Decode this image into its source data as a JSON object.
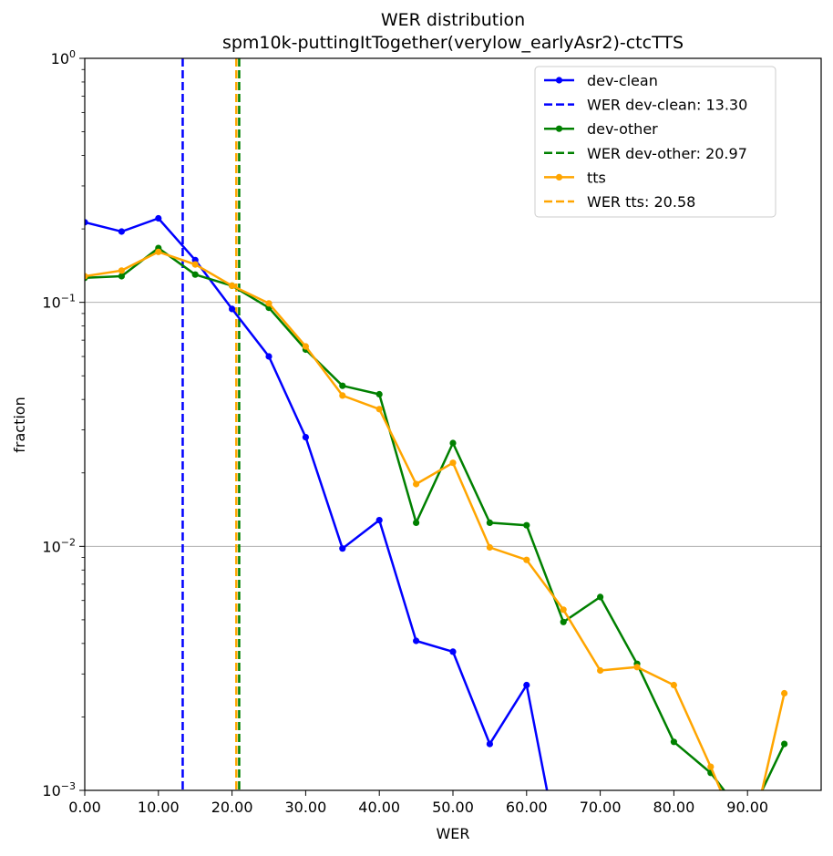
{
  "chart_data": {
    "type": "line",
    "title": "WER distribution",
    "subtitle": "spm10k-puttingItTogether(verylow_earlyAsr2)-ctcTTS",
    "xlabel": "WER",
    "ylabel": "fraction",
    "xlim": [
      0,
      100
    ],
    "ylim": [
      0.001,
      1
    ],
    "yscale": "log",
    "grid": "horizontal major",
    "legend_position": "top-right",
    "x_ticks": [
      0,
      10,
      20,
      30,
      40,
      50,
      60,
      70,
      80,
      90
    ],
    "x_tick_labels": [
      "0.00",
      "10.00",
      "20.00",
      "30.00",
      "40.00",
      "50.00",
      "60.00",
      "70.00",
      "80.00",
      "90.00"
    ],
    "y_ticks": [
      0.001,
      0.01,
      0.1,
      1
    ],
    "y_tick_bases": [
      "10",
      "10",
      "10",
      "10"
    ],
    "y_tick_exponents": [
      "−3",
      "−2",
      "−1",
      "0"
    ],
    "series": [
      {
        "name": "dev-clean",
        "color": "#0000ff",
        "x": [
          0,
          5,
          10,
          15,
          20,
          25,
          30,
          35,
          40,
          45,
          50,
          55,
          60,
          65
        ],
        "y": [
          0.213,
          0.195,
          0.221,
          0.149,
          0.094,
          0.06,
          0.028,
          0.0098,
          0.0128,
          0.0041,
          0.0037,
          0.00155,
          0.0027,
          0.00045
        ]
      },
      {
        "name": "dev-other",
        "color": "#008000",
        "x": [
          0,
          5,
          10,
          15,
          20,
          25,
          30,
          35,
          40,
          45,
          50,
          55,
          60,
          65,
          70,
          75,
          80,
          85,
          90,
          95
        ],
        "y": [
          0.126,
          0.128,
          0.167,
          0.13,
          0.117,
          0.095,
          0.064,
          0.0455,
          0.042,
          0.0125,
          0.0265,
          0.0125,
          0.0122,
          0.0049,
          0.0062,
          0.0033,
          0.00158,
          0.00118,
          0.00075,
          0.00155
        ]
      },
      {
        "name": "tts",
        "color": "#ffa500",
        "x": [
          0,
          5,
          10,
          15,
          20,
          25,
          30,
          35,
          40,
          45,
          50,
          55,
          60,
          65,
          70,
          75,
          80,
          85,
          90,
          95
        ],
        "y": [
          0.128,
          0.135,
          0.161,
          0.143,
          0.117,
          0.099,
          0.066,
          0.0415,
          0.0365,
          0.018,
          0.022,
          0.0099,
          0.0088,
          0.0055,
          0.0031,
          0.0032,
          0.0027,
          0.00125,
          0.00055,
          0.0025
        ]
      }
    ],
    "vlines": [
      {
        "name": "WER dev-clean: 13.30",
        "x": 13.3,
        "color": "#0000ff"
      },
      {
        "name": "WER dev-other: 20.97",
        "x": 20.97,
        "color": "#008000"
      },
      {
        "name": "WER tts: 20.58",
        "x": 20.58,
        "color": "#ffa500"
      }
    ],
    "legend": [
      {
        "label": "dev-clean",
        "style": "line-marker",
        "color": "#0000ff"
      },
      {
        "label": "WER dev-clean: 13.30",
        "style": "dashed",
        "color": "#0000ff"
      },
      {
        "label": "dev-other",
        "style": "line-marker",
        "color": "#008000"
      },
      {
        "label": "WER dev-other: 20.97",
        "style": "dashed",
        "color": "#008000"
      },
      {
        "label": "tts",
        "style": "line-marker",
        "color": "#ffa500"
      },
      {
        "label": "WER tts: 20.58",
        "style": "dashed",
        "color": "#ffa500"
      }
    ]
  }
}
